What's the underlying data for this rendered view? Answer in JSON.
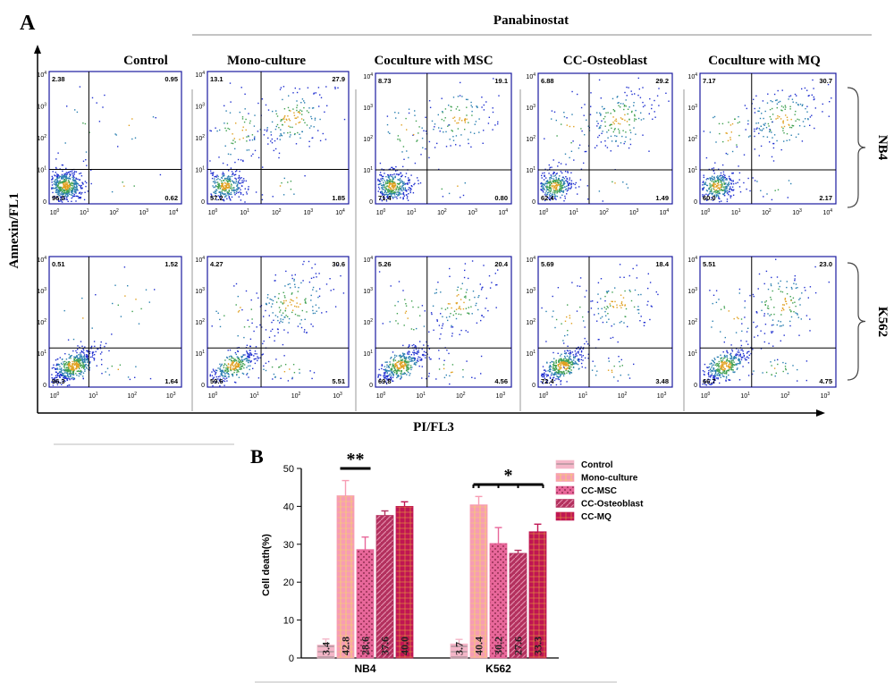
{
  "panel_a": {
    "letter": "A",
    "group_header": "Panabinostat",
    "y_axis_label": "Annexin/FL1",
    "x_axis_label": "PI/FL3",
    "column_titles": [
      "Control",
      "Mono-culture",
      "Coculture with MSC",
      "CC-Osteoblast",
      "Coculture with MQ"
    ],
    "row_labels": [
      "NB4",
      "K562"
    ],
    "tick_labels": {
      "x": [
        "10",
        "10",
        "10",
        "10",
        "10"
      ],
      "y": [
        "0",
        "10",
        "10",
        "10",
        "10"
      ],
      "exponents": [
        "0",
        "1",
        "2",
        "3",
        "4"
      ]
    },
    "quadrants": {
      "NB4": [
        {
          "ul": "2.38",
          "ur": "0.95",
          "ll": "96.0",
          "lr": "0.62"
        },
        {
          "ul": "13.1",
          "ur": "27.9",
          "ll": "57.2",
          "lr": "1.85"
        },
        {
          "ul": "8.73",
          "ur": "19.1",
          "ll": "71.4",
          "lr": "0.80"
        },
        {
          "ul": "6.88",
          "ur": "29.2",
          "ll": "62.4",
          "lr": "1.49"
        },
        {
          "ul": "7.17",
          "ur": "30.7",
          "ll": "60.0",
          "lr": "2.17"
        }
      ],
      "K562": [
        {
          "ul": "0.51",
          "ur": "1.52",
          "ll": "96.3",
          "lr": "1.64"
        },
        {
          "ul": "4.27",
          "ur": "30.6",
          "ll": "59.6",
          "lr": "5.51"
        },
        {
          "ul": "5.26",
          "ur": "20.4",
          "ll": "69.8",
          "lr": "4.56"
        },
        {
          "ul": "5.69",
          "ur": "18.4",
          "ll": "72.4",
          "lr": "3.48"
        },
        {
          "ul": "5.51",
          "ur": "23.0",
          "ll": "66.7",
          "lr": "4.75"
        }
      ]
    }
  },
  "chart_data": {
    "type": "bar",
    "panel_letter": "B",
    "categories": [
      "NB4",
      "K562"
    ],
    "ylabel": "Cell death(%)",
    "ylim": [
      0,
      50
    ],
    "yticks": [
      "0",
      "10",
      "20",
      "30",
      "40",
      "50"
    ],
    "legend_position": "top-right",
    "series": [
      {
        "name": "Control",
        "values": [
          3.4,
          3.7
        ],
        "errors": [
          1.6,
          1.2
        ],
        "labels": [
          "3.4",
          "3.7"
        ],
        "color": "#f4b6c8"
      },
      {
        "name": "Mono-culture",
        "values": [
          42.8,
          40.4
        ],
        "errors": [
          4.0,
          2.2
        ],
        "labels": [
          "42.8",
          "40.4"
        ],
        "color": "#f79cb3"
      },
      {
        "name": "CC-MSC",
        "values": [
          28.6,
          30.2
        ],
        "errors": [
          3.3,
          4.2
        ],
        "labels": [
          "28.6",
          "30.2"
        ],
        "color": "#e8679a"
      },
      {
        "name": "CC-Osteoblast",
        "values": [
          37.6,
          27.6
        ],
        "errors": [
          1.2,
          0.8
        ],
        "labels": [
          "37.6",
          "27.6"
        ],
        "color": "#b3305e"
      },
      {
        "name": "CC-MQ",
        "values": [
          40.0,
          33.3
        ],
        "errors": [
          1.2,
          2.0
        ],
        "labels": [
          "40.0",
          "33.3"
        ],
        "color": "#c01553"
      }
    ],
    "annotations": [
      {
        "text": "**",
        "group": "NB4",
        "from_series": 1,
        "to_series": 2
      },
      {
        "text": "*",
        "group": "K562",
        "from_series": 1,
        "to_series": 4
      }
    ]
  }
}
